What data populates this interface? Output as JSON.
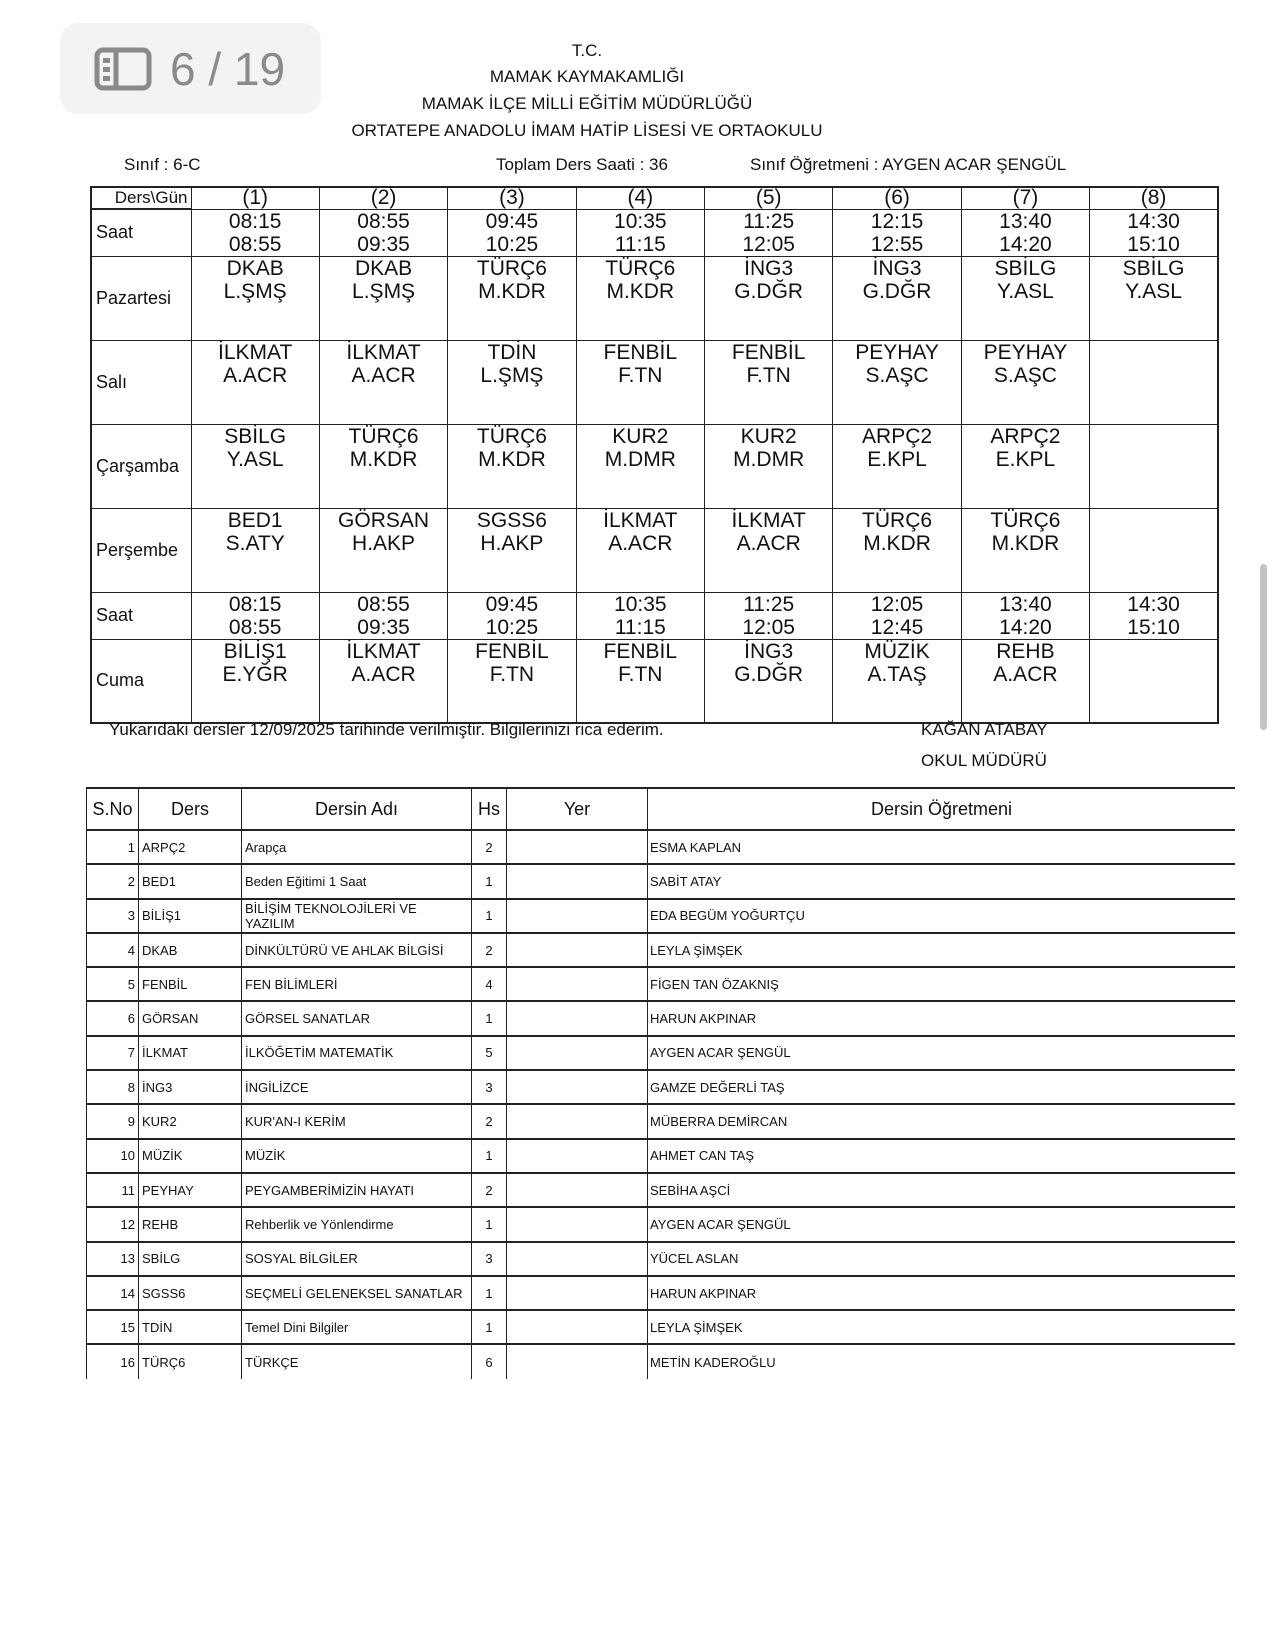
{
  "viewer": {
    "page_indicator": "6 / 19",
    "icon": "sidebar-icon"
  },
  "header": {
    "line1": "T.C.",
    "line2": "MAMAK KAYMAKAMLIĞI",
    "line3": "MAMAK İLÇE MİLLİ EĞİTİM MÜDÜRLÜĞÜ",
    "line4": "ORTATEPE ANADOLU İMAM HATİP LİSESİ VE ORTAOKULU"
  },
  "info": {
    "class_label": "Sınıf  :  6-C",
    "total_label": "Toplam Ders Saati :  36",
    "teacher_label": "Sınıf Öğretmeni  :  AYGEN ACAR ŞENGÜL"
  },
  "timetable": {
    "corner": "Ders\\Gün",
    "periods": [
      "(1)",
      "(2)",
      "(3)",
      "(4)",
      "(5)",
      "(6)",
      "(7)",
      "(8)"
    ],
    "rows": [
      {
        "day": "Saat",
        "cells": [
          [
            "08:15",
            "08:55"
          ],
          [
            "08:55",
            "09:35"
          ],
          [
            "09:45",
            "10:25"
          ],
          [
            "10:35",
            "11:15"
          ],
          [
            "11:25",
            "12:05"
          ],
          [
            "12:15",
            "12:55"
          ],
          [
            "13:40",
            "14:20"
          ],
          [
            "14:30",
            "15:10"
          ]
        ],
        "type": "s"
      },
      {
        "day": "Pazartesi",
        "cells": [
          [
            "DKAB",
            "L.ŞMŞ"
          ],
          [
            "DKAB",
            "L.ŞMŞ"
          ],
          [
            "TÜRÇ6",
            "M.KDR"
          ],
          [
            "TÜRÇ6",
            "M.KDR"
          ],
          [
            "İNG3",
            "G.DĞR"
          ],
          [
            "İNG3",
            "G.DĞR"
          ],
          [
            "SBİLG",
            "Y.ASL"
          ],
          [
            "SBİLG",
            "Y.ASL"
          ]
        ],
        "type": "d"
      },
      {
        "day": "Salı",
        "cells": [
          [
            "İLKMAT",
            "A.ACR"
          ],
          [
            "İLKMAT",
            "A.ACR"
          ],
          [
            "TDİN",
            "L.ŞMŞ"
          ],
          [
            "FENBİL",
            "F.TN"
          ],
          [
            "FENBİL",
            "F.TN"
          ],
          [
            "PEYHAY",
            "S.AŞC"
          ],
          [
            "PEYHAY",
            "S.AŞC"
          ],
          [
            "",
            ""
          ]
        ],
        "type": "d"
      },
      {
        "day": "Çarşamba",
        "cells": [
          [
            "SBİLG",
            "Y.ASL"
          ],
          [
            "TÜRÇ6",
            "M.KDR"
          ],
          [
            "TÜRÇ6",
            "M.KDR"
          ],
          [
            "KUR2",
            "M.DMR"
          ],
          [
            "KUR2",
            "M.DMR"
          ],
          [
            "ARPÇ2",
            "E.KPL"
          ],
          [
            "ARPÇ2",
            "E.KPL"
          ],
          [
            "",
            ""
          ]
        ],
        "type": "d"
      },
      {
        "day": "Perşembe",
        "cells": [
          [
            "BED1",
            "S.ATY"
          ],
          [
            "GÖRSAN",
            "H.AKP"
          ],
          [
            "SGSS6",
            "H.AKP"
          ],
          [
            "İLKMAT",
            "A.ACR"
          ],
          [
            "İLKMAT",
            "A.ACR"
          ],
          [
            "TÜRÇ6",
            "M.KDR"
          ],
          [
            "TÜRÇ6",
            "M.KDR"
          ],
          [
            "",
            ""
          ]
        ],
        "type": "d"
      },
      {
        "day": "Saat",
        "cells": [
          [
            "08:15",
            "08:55"
          ],
          [
            "08:55",
            "09:35"
          ],
          [
            "09:45",
            "10:25"
          ],
          [
            "10:35",
            "11:15"
          ],
          [
            "11:25",
            "12:05"
          ],
          [
            "12:05",
            "12:45"
          ],
          [
            "13:40",
            "14:20"
          ],
          [
            "14:30",
            "15:10"
          ]
        ],
        "type": "s"
      },
      {
        "day": "Cuma",
        "cells": [
          [
            "BİLİŞ1",
            "E.YĞR"
          ],
          [
            "İLKMAT",
            "A.ACR"
          ],
          [
            "FENBİL",
            "F.TN"
          ],
          [
            "FENBİL",
            "F.TN"
          ],
          [
            "İNG3",
            "G.DĞR"
          ],
          [
            "MÜZİK",
            "A.TAŞ"
          ],
          [
            "REHB",
            "A.ACR"
          ],
          [
            "",
            ""
          ]
        ],
        "type": "d"
      }
    ]
  },
  "footer": {
    "note": "Yukarıdaki dersler 12/09/2025 tarihinde verilmiştir. Bilgilerinizi rica ederim.",
    "principal": "KAĞAN ATABAY",
    "title": "OKUL MÜDÜRÜ"
  },
  "lessons": {
    "headers": [
      "S.No",
      "Ders",
      "Dersin Adı",
      "Hs",
      "Yer",
      "Dersin Öğretmeni"
    ],
    "rows": [
      [
        "1",
        "ARPÇ2",
        "Arapça",
        "2",
        "",
        "ESMA KAPLAN"
      ],
      [
        "2",
        "BED1",
        "Beden Eğitimi 1 Saat",
        "1",
        "",
        "SABİT ATAY"
      ],
      [
        "3",
        "BİLİŞ1",
        "BİLİŞİM TEKNOLOJİLERİ VE YAZILIM",
        "1",
        "",
        "EDA BEGÜM YOĞURTÇU"
      ],
      [
        "4",
        "DKAB",
        "DİNKÜLTÜRÜ VE AHLAK BİLGİSİ",
        "2",
        "",
        "LEYLA ŞİMŞEK"
      ],
      [
        "5",
        "FENBİL",
        "FEN BİLİMLERİ",
        "4",
        "",
        "FİGEN TAN ÖZAKNIŞ"
      ],
      [
        "6",
        "GÖRSAN",
        "GÖRSEL SANATLAR",
        "1",
        "",
        "HARUN AKPINAR"
      ],
      [
        "7",
        "İLKMAT",
        "İLKÖĞETİM MATEMATİK",
        "5",
        "",
        "AYGEN ACAR ŞENGÜL"
      ],
      [
        "8",
        "İNG3",
        "İNGİLİZCE",
        "3",
        "",
        "GAMZE DEĞERLİ TAŞ"
      ],
      [
        "9",
        "KUR2",
        "KUR'AN-I KERİM",
        "2",
        "",
        "MÜBERRA DEMİRCAN"
      ],
      [
        "10",
        "MÜZİK",
        "MÜZİK",
        "1",
        "",
        "AHMET CAN TAŞ"
      ],
      [
        "11",
        "PEYHAY",
        "PEYGAMBERİMİZİN HAYATI",
        "2",
        "",
        "SEBİHA AŞCİ"
      ],
      [
        "12",
        "REHB",
        "Rehberlik ve Yönlendirme",
        "1",
        "",
        "AYGEN ACAR ŞENGÜL"
      ],
      [
        "13",
        "SBİLG",
        "SOSYAL BİLGİLER",
        "3",
        "",
        "YÜCEL ASLAN"
      ],
      [
        "14",
        "SGSS6",
        "SEÇMELİ GELENEKSEL SANATLAR",
        "1",
        "",
        "HARUN AKPINAR"
      ],
      [
        "15",
        "TDİN",
        "Temel Dini Bilgiler",
        "1",
        "",
        "LEYLA ŞİMŞEK"
      ],
      [
        "16",
        "TÜRÇ6",
        "TÜRKÇE",
        "6",
        "",
        "METİN KADEROĞLU"
      ]
    ]
  }
}
